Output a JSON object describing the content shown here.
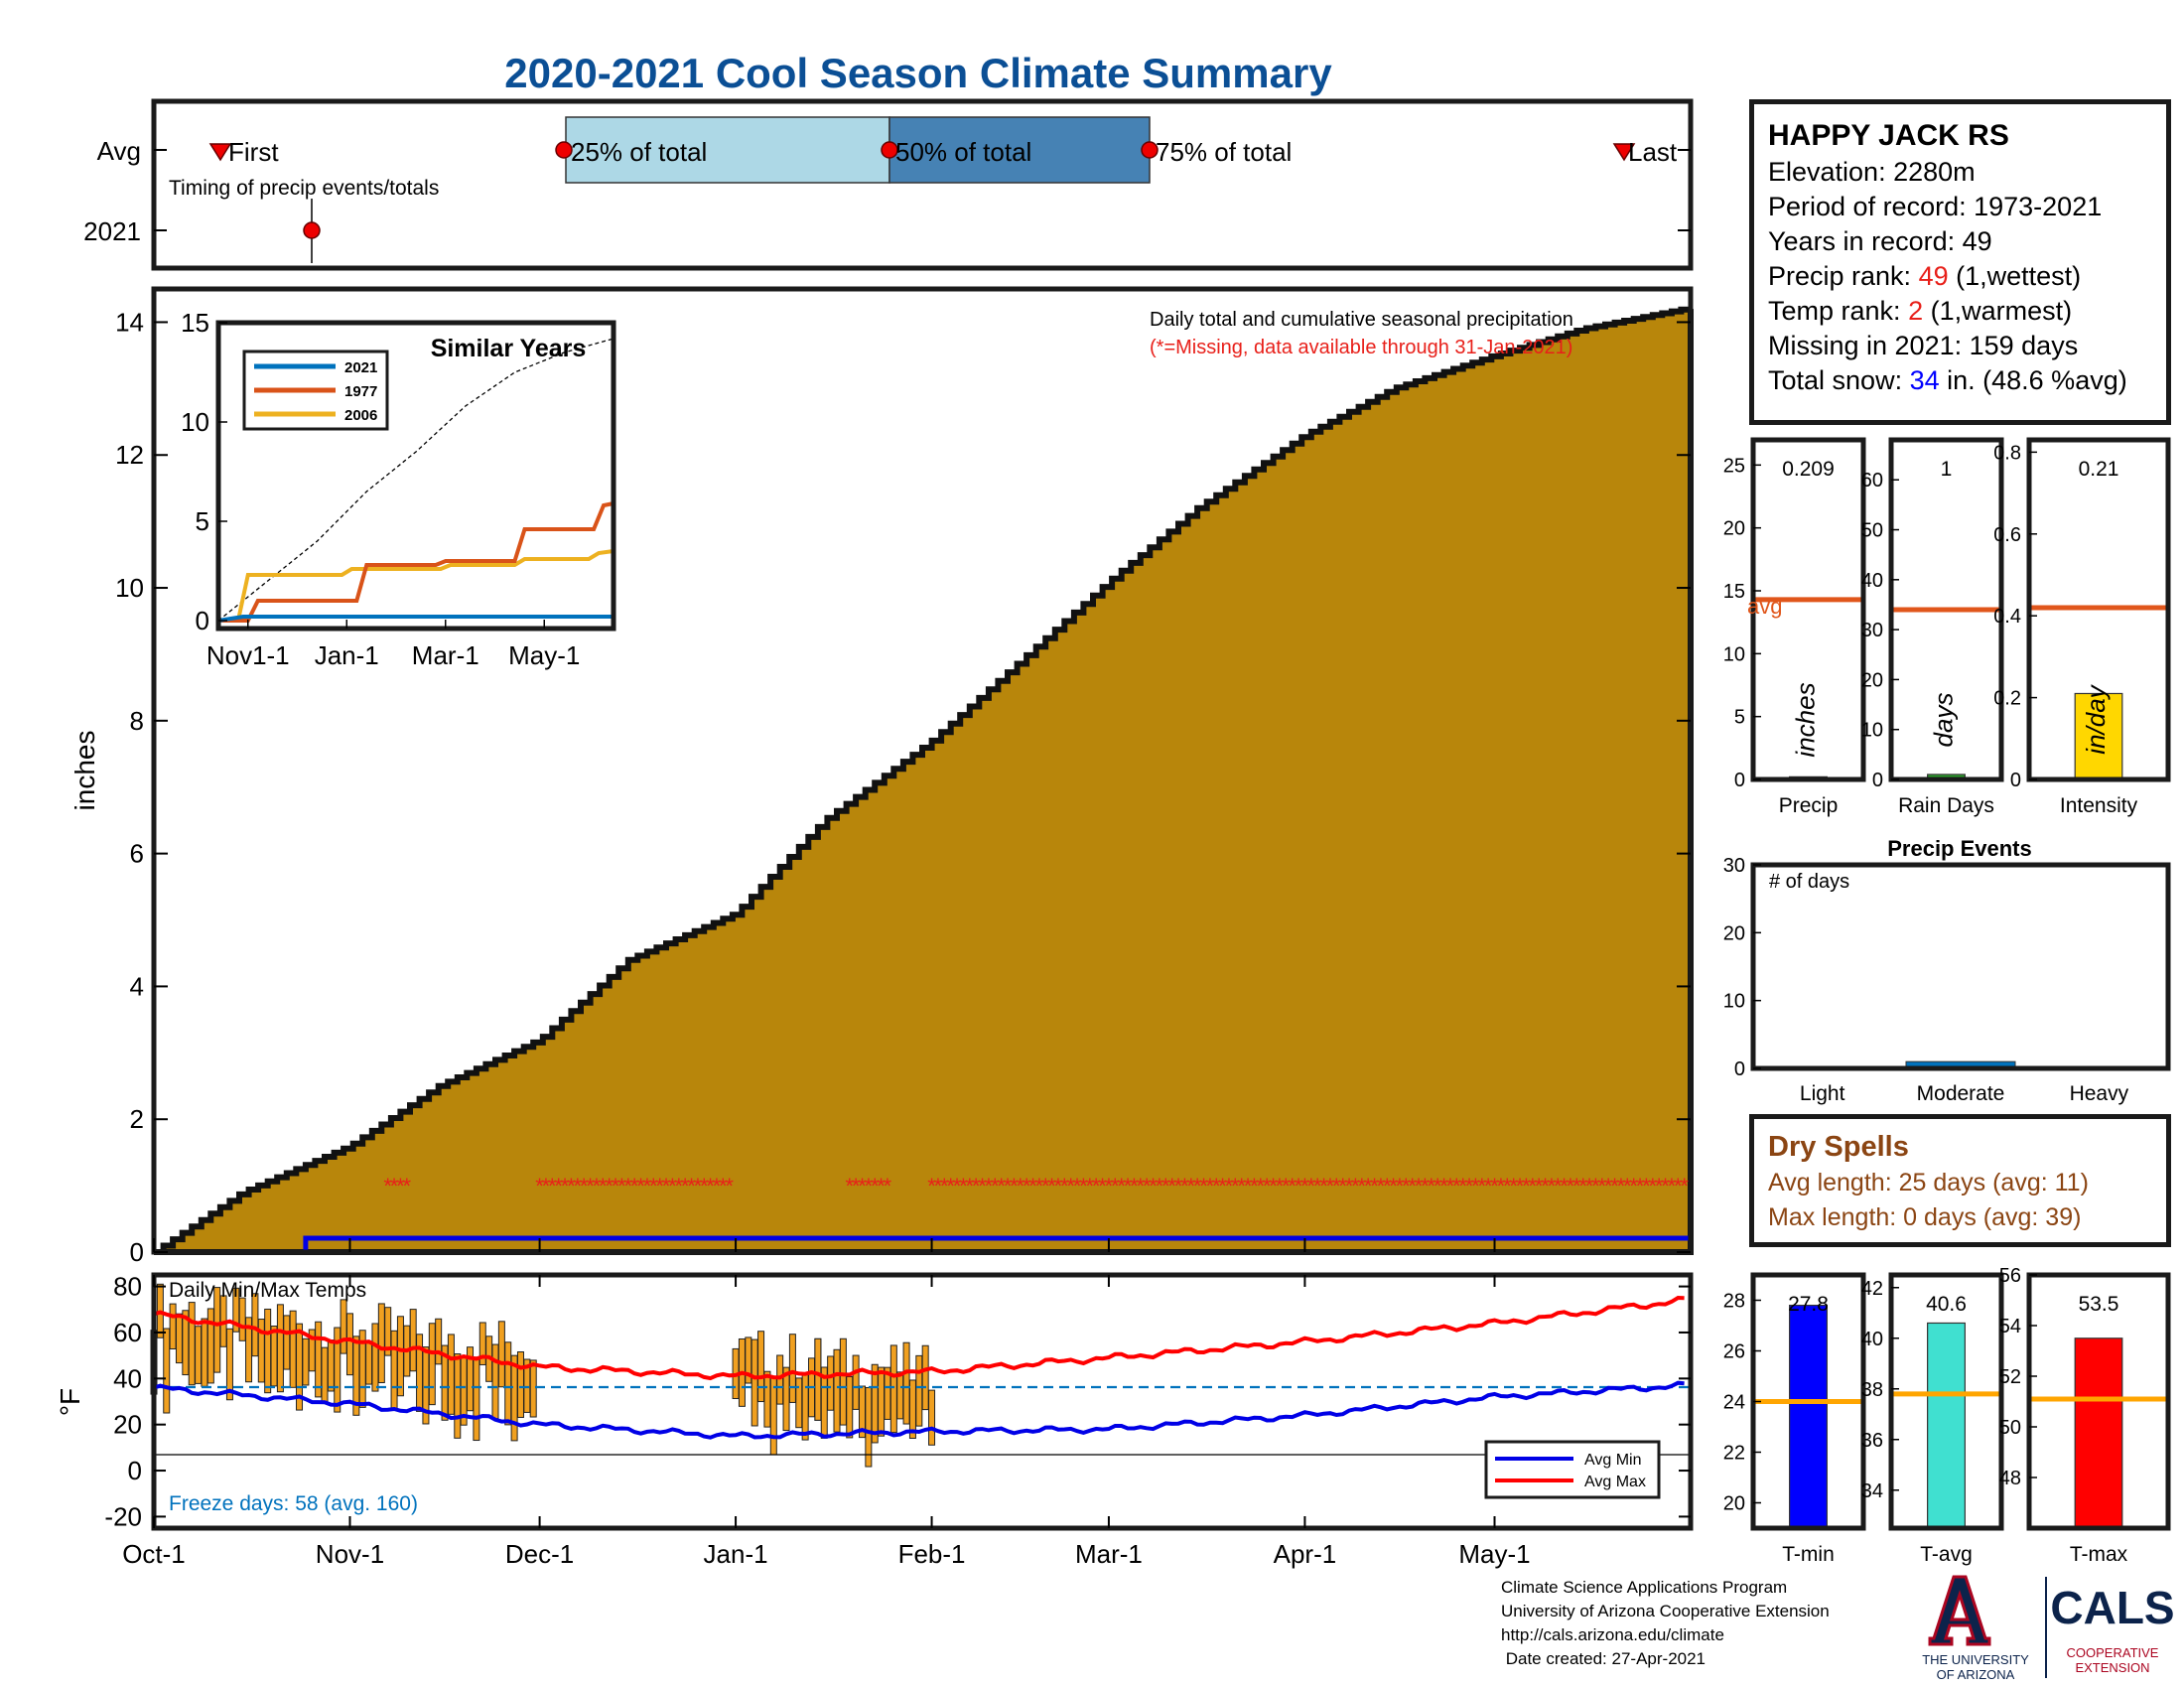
{
  "title": "2020-2021 Cool Season Climate Summary",
  "colors": {
    "title": "#0b4f95",
    "precip_fill": "#b8860b",
    "missing": "#e8201a",
    "bar_light": "#add8e6",
    "bar_dark": "#4682b4",
    "avg_line": "#e0561b",
    "dry_text": "#8b4513",
    "tmin": "#0000ff",
    "tavg": "#40e0d0",
    "tmax": "#ff0000",
    "temp_bar": "#f0a020",
    "orange_avg": "#ffa500"
  },
  "timing": {
    "row_avg": "Avg",
    "row_2021": "2021",
    "first": "First",
    "p25": "25% of total",
    "p50": "50% of total",
    "p75": "75% of total",
    "last": "Last",
    "caption": "Timing of precip events/totals"
  },
  "station": {
    "name": "HAPPY JACK RS",
    "elevation": "Elevation: 2280m",
    "period": "Period of record: 1973-2021",
    "years": "Years in record: 49",
    "precip_rank_label": "Precip rank: ",
    "precip_rank_value": "49",
    "precip_rank_suffix": " (1,wettest)",
    "temp_rank_label": "Temp rank: ",
    "temp_rank_value": "2",
    "temp_rank_suffix": " (1,warmest)",
    "missing": "Missing in 2021: 159 days",
    "snow_label": "Total snow: ",
    "snow_value": "34",
    "snow_suffix": " in. (48.6 %avg)"
  },
  "main_chart": {
    "ylabel": "inches",
    "yticks": [
      "0",
      "2",
      "4",
      "6",
      "8",
      "10",
      "12",
      "14"
    ],
    "xticks": [
      "Oct-1",
      "Nov-1",
      "Dec-1",
      "Jan-1",
      "Feb-1",
      "Mar-1",
      "Apr-1",
      "May-1"
    ],
    "note1": "Daily total and cumulative seasonal precipitation",
    "note2": "(*=Missing, data available through 31-Jan-2021)"
  },
  "chart_data": [
    {
      "type": "area",
      "name": "Cumulative seasonal precipitation",
      "ylabel": "inches",
      "ylim": [
        0,
        14.5
      ],
      "x": [
        "Oct-1",
        "Oct-15",
        "Nov-1",
        "Nov-15",
        "Dec-1",
        "Dec-15",
        "Jan-1",
        "Jan-15",
        "Feb-1",
        "Feb-15",
        "Mar-1",
        "Mar-15",
        "Apr-1",
        "Apr-15",
        "May-1",
        "May-15",
        "May-31"
      ],
      "values": [
        0,
        0.9,
        1.6,
        2.5,
        3.2,
        4.4,
        5.1,
        6.5,
        7.7,
        8.9,
        10.1,
        11.2,
        12.3,
        13.0,
        13.5,
        13.9,
        14.2
      ],
      "missing_ranges": [
        [
          "Nov-7",
          "Nov-10"
        ],
        [
          "Dec-1",
          "Dec-31"
        ],
        [
          "Jan-19",
          "Jan-25"
        ],
        [
          "Feb-1",
          "May-31"
        ]
      ],
      "missing_y": 1.0,
      "current_season_line_from": "Oct-25",
      "current_season_value": 0.209
    },
    {
      "type": "line",
      "name": "Similar Years",
      "title": "Similar Years",
      "xticks": [
        "Nov1-1",
        "Jan-1",
        "Mar-1",
        "May-1"
      ],
      "ylim": [
        0,
        15
      ],
      "yticks": [
        "0",
        "5",
        "10",
        "15"
      ],
      "series": [
        {
          "name": "2021",
          "color": "#0072bd",
          "x": [
            0,
            0.5,
            1,
            8
          ],
          "values": [
            0,
            0.2,
            0.2,
            0.2
          ]
        },
        {
          "name": "1977",
          "color": "#d95319",
          "x": [
            0,
            0.6,
            0.8,
            2.8,
            3.0,
            4.4,
            4.6,
            6.0,
            6.2,
            7.6,
            7.8,
            8
          ],
          "values": [
            0,
            0,
            1.0,
            1.0,
            2.8,
            2.8,
            3.0,
            3.0,
            4.6,
            4.6,
            5.8,
            5.9
          ]
        },
        {
          "name": "2006",
          "color": "#edb120",
          "x": [
            0,
            0.4,
            0.6,
            2.5,
            2.7,
            4.5,
            4.7,
            6.0,
            6.2,
            7.5,
            7.7,
            8
          ],
          "values": [
            0,
            0,
            2.3,
            2.3,
            2.6,
            2.6,
            2.8,
            2.8,
            3.1,
            3.1,
            3.4,
            3.5
          ]
        }
      ],
      "average_cumulative": {
        "x": [
          0,
          1,
          2,
          3,
          4,
          5,
          6,
          7,
          8
        ],
        "values": [
          0,
          2.0,
          4.0,
          6.5,
          8.5,
          10.8,
          12.5,
          13.5,
          14.2
        ]
      }
    },
    {
      "type": "bar",
      "name": "Precip",
      "xlabel": "Precip",
      "unit": "inches",
      "ylim": [
        0,
        27
      ],
      "yticks": [
        "0",
        "5",
        "10",
        "15",
        "20",
        "25"
      ],
      "value": 0.209,
      "value_label": "0.209",
      "avg": 14.3,
      "avg_label": "avg"
    },
    {
      "type": "bar",
      "name": "Rain Days",
      "xlabel": "Rain Days",
      "unit": "days",
      "ylim": [
        0,
        68
      ],
      "yticks": [
        "0",
        "10",
        "20",
        "30",
        "40",
        "50",
        "60"
      ],
      "value": 1,
      "value_label": "1",
      "avg": 34
    },
    {
      "type": "bar",
      "name": "Intensity",
      "xlabel": "Intensity",
      "unit": "in/day",
      "ylim": [
        0,
        0.83
      ],
      "yticks": [
        "0",
        "0.2",
        "0.4",
        "0.6",
        "0.8"
      ],
      "value": 0.21,
      "value_label": "0.21",
      "avg": 0.42
    },
    {
      "type": "bar",
      "name": "Precip Events",
      "title": "Precip Events",
      "annotation": "# of days",
      "categories": [
        "Light",
        "Moderate",
        "Heavy"
      ],
      "values": [
        0,
        1,
        0
      ],
      "ylim": [
        0,
        30
      ],
      "yticks": [
        "0",
        "10",
        "20",
        "30"
      ]
    },
    {
      "type": "bar",
      "name": "Daily Min/Max Temps",
      "title": "Daily Min/Max Temps",
      "ylabel": "°F",
      "ylim": [
        -25,
        85
      ],
      "yticks": [
        "-20",
        "0",
        "20",
        "40",
        "60",
        "80"
      ],
      "series": [
        {
          "name": "Avg Min",
          "x": [
            "Oct-1",
            "Nov-1",
            "Dec-1",
            "Jan-1",
            "Feb-1",
            "Mar-1",
            "Apr-1",
            "May-1",
            "May-31"
          ],
          "values": [
            36,
            29,
            20,
            15,
            17,
            18,
            24,
            32,
            37
          ]
        },
        {
          "name": "Avg Max",
          "x": [
            "Oct-1",
            "Nov-1",
            "Dec-1",
            "Jan-1",
            "Feb-1",
            "Mar-1",
            "Apr-1",
            "May-1",
            "May-31"
          ],
          "values": [
            68,
            56,
            45,
            41,
            43,
            49,
            56,
            64,
            74
          ]
        }
      ],
      "freeze_line": 32,
      "freeze_label": "Freeze days: 58 (avg. 160)"
    },
    {
      "type": "bar",
      "name": "T-min",
      "xlabel": "T-min",
      "ylim": [
        19,
        29
      ],
      "yticks": [
        "20",
        "22",
        "24",
        "26",
        "28"
      ],
      "value": 27.8,
      "value_label": "27.8",
      "avg": 24
    },
    {
      "type": "bar",
      "name": "T-avg",
      "xlabel": "T-avg",
      "ylim": [
        32.5,
        42.5
      ],
      "yticks": [
        "34",
        "36",
        "38",
        "40",
        "42"
      ],
      "value": 40.6,
      "value_label": "40.6",
      "avg": 37.8
    },
    {
      "type": "bar",
      "name": "T-max",
      "xlabel": "T-max",
      "ylim": [
        46,
        56
      ],
      "yticks": [
        "48",
        "50",
        "52",
        "54",
        "56"
      ],
      "value": 53.5,
      "value_label": "53.5",
      "avg": 51.1
    }
  ],
  "dry_spells": {
    "title": "Dry Spells",
    "avg_line": "Avg length: 25 days (avg: 11)",
    "max_line": "Max length: 0 days (avg: 39)"
  },
  "legend_temp": {
    "min": "Avg Min",
    "max": "Avg Max"
  },
  "footer": {
    "line1": "Climate Science Applications Program",
    "line2": "University of Arizona Cooperative Extension",
    "line3": "http://cals.arizona.edu/climate",
    "line4": " Date created: 27-Apr-2021",
    "ua_line1": "THE UNIVERSITY",
    "ua_line2": "OF ARIZONA",
    "cals": "CALS",
    "coop1": "COOPERATIVE",
    "coop2": "EXTENSION"
  }
}
